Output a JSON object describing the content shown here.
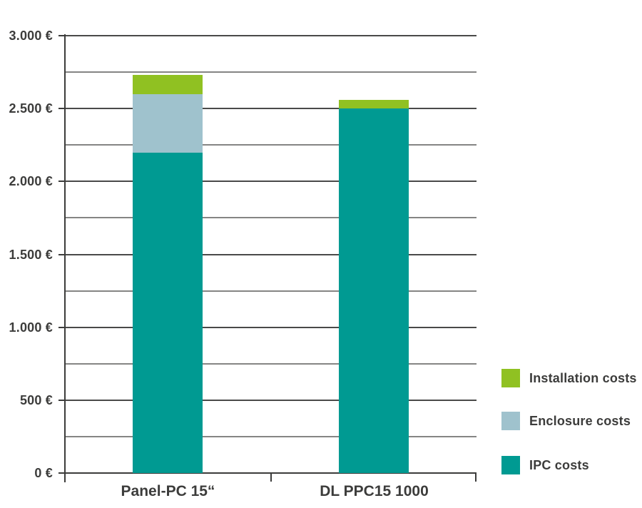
{
  "chart_data": {
    "type": "bar",
    "stacked": true,
    "title": "",
    "xlabel": "",
    "ylabel": "",
    "currency": "EUR",
    "categories": [
      "Panel-PC 15“",
      "DL PPC15 1000"
    ],
    "series": [
      {
        "name": "IPC costs",
        "color": "#009a92",
        "values": [
          2200,
          2500
        ]
      },
      {
        "name": "Enclosure costs",
        "color": "#9fc2cd",
        "values": [
          400,
          0
        ]
      },
      {
        "name": "Installation costs",
        "color": "#90c122",
        "values": [
          130,
          60
        ]
      }
    ],
    "totals": [
      2730,
      2560
    ],
    "ylim": [
      0,
      3000
    ],
    "y_major_step": 500,
    "y_minor_step": 250,
    "y_tick_labels": [
      "0 €",
      "500 €",
      "1.000 €",
      "1.500 €",
      "2.000 €",
      "2.500 €",
      "3.000 €"
    ],
    "grid": true,
    "legend_position": "right-bottom",
    "legend": [
      {
        "label": "Installation costs",
        "color": "#90c122"
      },
      {
        "label": "Enclosure costs",
        "color": "#9fc2cd"
      },
      {
        "label": "IPC costs",
        "color": "#009a92"
      }
    ]
  },
  "colors": {
    "background": "#ffffff",
    "text": "#3c3c3b",
    "axis": "#3c3c3b",
    "grid_major": "#4a4a49",
    "grid_minor": "#858584",
    "ipc_teal": "#009a92",
    "enclosure_blue": "#9fc2cd",
    "installation_green": "#90c122"
  }
}
